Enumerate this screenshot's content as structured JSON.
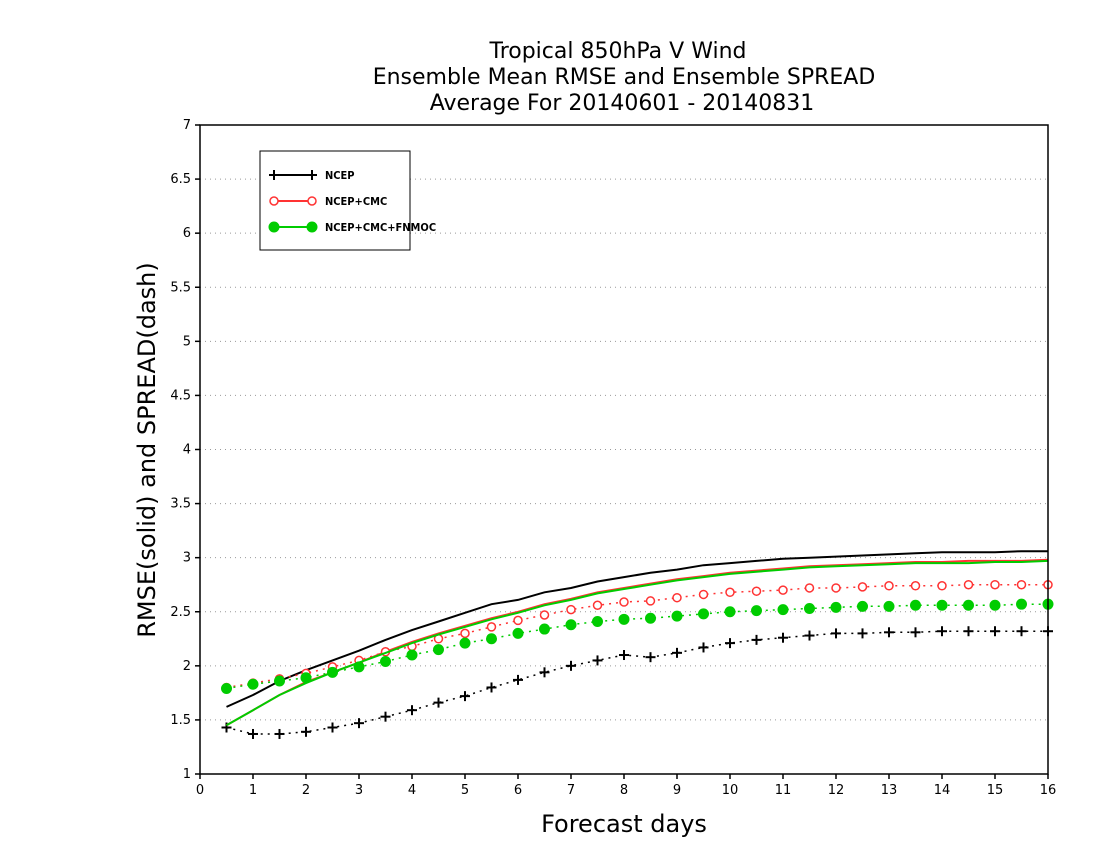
{
  "chart_data": {
    "type": "line",
    "title": [
      "Tropical 850hPa V Wind",
      "Ensemble Mean RMSE and Ensemble SPREAD",
      "Average For 20140601 - 20140831"
    ],
    "xlabel": "Forecast days",
    "ylabel": "RMSE(solid) and SPREAD(dash)",
    "xlim": [
      0,
      16
    ],
    "ylim": [
      1,
      7
    ],
    "xticks": [
      0,
      1,
      2,
      3,
      4,
      5,
      6,
      7,
      8,
      9,
      10,
      11,
      12,
      13,
      14,
      15,
      16
    ],
    "xtick_labels": [
      "0",
      "1",
      "2",
      "3",
      "4",
      "5",
      "6",
      "7",
      "8",
      "9",
      "10",
      "11",
      "12",
      "13",
      "14",
      "15",
      "16"
    ],
    "yticks": [
      1,
      1.5,
      2,
      2.5,
      3,
      3.5,
      4,
      4.5,
      5,
      5.5,
      6,
      6.5,
      7
    ],
    "ytick_labels": [
      "1",
      "1.5",
      "2",
      "2.5",
      "3",
      "3.5",
      "4",
      "4.5",
      "5",
      "5.5",
      "6",
      "6.5",
      "7"
    ],
    "grid": "horizontal dotted",
    "legend_position": "top-left",
    "x": [
      0.5,
      1,
      1.5,
      2,
      2.5,
      3,
      3.5,
      4,
      4.5,
      5,
      5.5,
      6,
      6.5,
      7,
      7.5,
      8,
      8.5,
      9,
      9.5,
      10,
      10.5,
      11,
      11.5,
      12,
      12.5,
      13,
      13.5,
      14,
      14.5,
      15,
      15.5,
      16
    ],
    "series": [
      {
        "name": "NCEP",
        "color": "#000000",
        "marker": "plus",
        "rmse": [
          1.62,
          1.73,
          1.86,
          1.96,
          2.05,
          2.14,
          2.24,
          2.33,
          2.41,
          2.49,
          2.57,
          2.61,
          2.68,
          2.72,
          2.78,
          2.82,
          2.86,
          2.89,
          2.93,
          2.95,
          2.97,
          2.99,
          3.0,
          3.01,
          3.02,
          3.03,
          3.04,
          3.05,
          3.05,
          3.05,
          3.06,
          3.06
        ],
        "spread": [
          1.43,
          1.37,
          1.37,
          1.39,
          1.43,
          1.47,
          1.53,
          1.59,
          1.66,
          1.72,
          1.8,
          1.87,
          1.94,
          2.0,
          2.05,
          2.1,
          2.08,
          2.12,
          2.17,
          2.21,
          2.24,
          2.26,
          2.28,
          2.3,
          2.3,
          2.31,
          2.31,
          2.32,
          2.32,
          2.32,
          2.32,
          2.32
        ]
      },
      {
        "name": "NCEP+CMC",
        "color": "#ff3333",
        "marker": "open-circle",
        "rmse": [
          1.45,
          1.59,
          1.73,
          1.85,
          1.94,
          2.03,
          2.13,
          2.22,
          2.3,
          2.37,
          2.44,
          2.5,
          2.57,
          2.62,
          2.68,
          2.72,
          2.76,
          2.8,
          2.83,
          2.86,
          2.88,
          2.9,
          2.92,
          2.93,
          2.94,
          2.95,
          2.96,
          2.96,
          2.97,
          2.97,
          2.97,
          2.98
        ],
        "spread": [
          1.8,
          1.84,
          1.88,
          1.93,
          1.99,
          2.05,
          2.13,
          2.18,
          2.25,
          2.3,
          2.36,
          2.42,
          2.47,
          2.52,
          2.56,
          2.59,
          2.6,
          2.63,
          2.66,
          2.68,
          2.69,
          2.7,
          2.72,
          2.72,
          2.73,
          2.74,
          2.74,
          2.74,
          2.75,
          2.75,
          2.75,
          2.75
        ]
      },
      {
        "name": "NCEP+CMC+FNMOC",
        "color": "#00cc00",
        "marker": "filled-circle",
        "rmse": [
          1.45,
          1.59,
          1.73,
          1.84,
          1.94,
          2.03,
          2.12,
          2.21,
          2.29,
          2.36,
          2.43,
          2.49,
          2.56,
          2.61,
          2.67,
          2.71,
          2.75,
          2.79,
          2.82,
          2.85,
          2.87,
          2.89,
          2.91,
          2.92,
          2.93,
          2.94,
          2.95,
          2.95,
          2.95,
          2.96,
          2.96,
          2.97
        ],
        "spread": [
          1.79,
          1.83,
          1.86,
          1.89,
          1.94,
          1.99,
          2.04,
          2.1,
          2.15,
          2.21,
          2.25,
          2.3,
          2.34,
          2.38,
          2.41,
          2.43,
          2.44,
          2.46,
          2.48,
          2.5,
          2.51,
          2.52,
          2.53,
          2.54,
          2.55,
          2.55,
          2.56,
          2.56,
          2.56,
          2.56,
          2.57,
          2.57
        ]
      }
    ]
  }
}
